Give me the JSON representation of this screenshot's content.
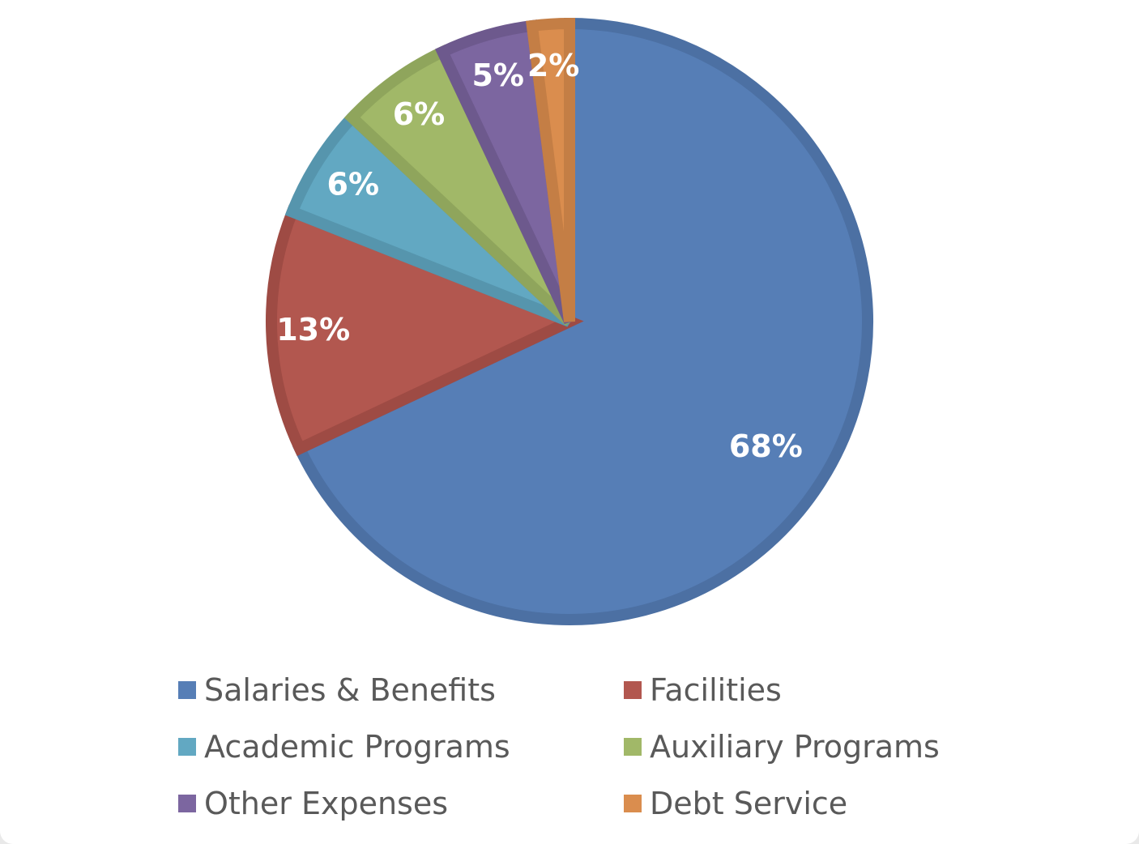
{
  "chart_data": {
    "type": "pie",
    "title": "",
    "start_angle_deg": 0,
    "direction": "clockwise",
    "legend_placement": "bottom",
    "slices": [
      {
        "name": "Salaries & Benefits",
        "value": 68,
        "label": "68%",
        "color": "#567EB6",
        "edge": "#4C70A3"
      },
      {
        "name": "Facilities",
        "value": 13,
        "label": "13%",
        "color": "#B2574F",
        "edge": "#9E4B44"
      },
      {
        "name": "Academic Programs",
        "value": 6,
        "label": "6%",
        "color": "#62A8C2",
        "edge": "#5695AD"
      },
      {
        "name": "Auxiliary Programs",
        "value": 6,
        "label": "6%",
        "color": "#A1B868",
        "edge": "#8FA55C"
      },
      {
        "name": "Other Expenses",
        "value": 5,
        "label": "5%",
        "color": "#7C66A0",
        "edge": "#6D598D"
      },
      {
        "name": "Debt Service",
        "value": 2,
        "label": "2%",
        "color": "#DA8D4E",
        "edge": "#C47E45"
      }
    ]
  }
}
